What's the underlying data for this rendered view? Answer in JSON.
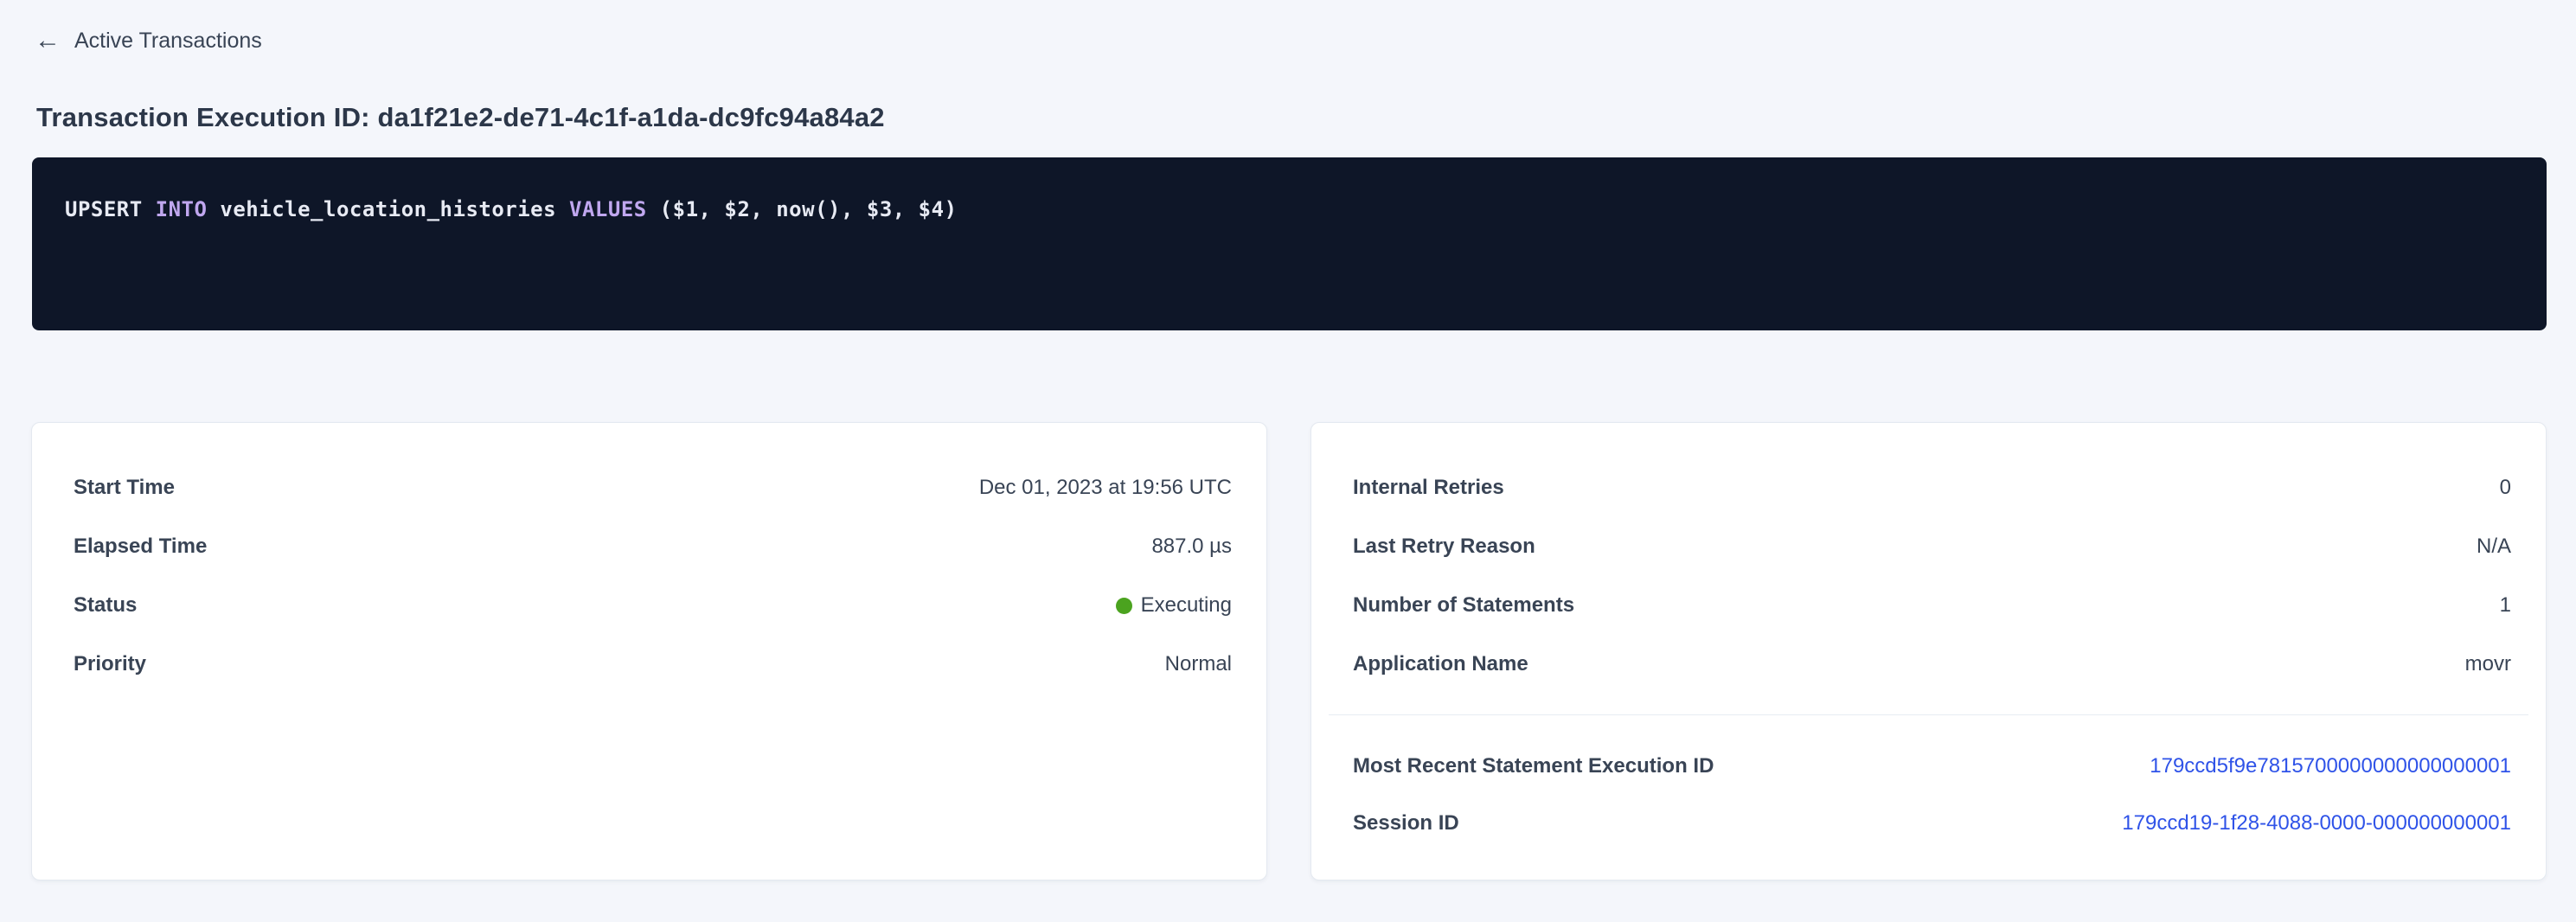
{
  "colors": {
    "link": "#2F53E8",
    "status_executing": "#4BA31F",
    "sql_keyword": "#C0A7EF",
    "sql_plain": "#E7EAF3",
    "sql_background": "#0E1628"
  },
  "header": {
    "back_link": "Active Transactions",
    "title": "Transaction Execution ID: da1f21e2-de71-4c1f-a1da-dc9fc94a84a2"
  },
  "sql": {
    "statement": "UPSERT INTO vehicle_location_histories VALUES ($1, $2, now(), $3, $4)",
    "tokens": [
      {
        "text": "UPSERT ",
        "type": "plain"
      },
      {
        "text": "INTO",
        "type": "keyword"
      },
      {
        "text": " vehicle_location_histories ",
        "type": "plain"
      },
      {
        "text": "VALUES",
        "type": "keyword"
      },
      {
        "text": " ($1, $2, now(), $3, $4)",
        "type": "plain"
      }
    ]
  },
  "summary_card": {
    "rows": [
      {
        "label": "Start Time",
        "value": "Dec 01, 2023 at 19:56 UTC"
      },
      {
        "label": "Elapsed Time",
        "value": "887.0 µs"
      },
      {
        "label": "Status",
        "value": "Executing"
      },
      {
        "label": "Priority",
        "value": "Normal"
      }
    ]
  },
  "metadata_card": {
    "rows": [
      {
        "label": "Internal Retries",
        "value": "0"
      },
      {
        "label": "Last Retry Reason",
        "value": "N/A"
      },
      {
        "label": "Number of Statements",
        "value": "1"
      },
      {
        "label": "Application Name",
        "value": "movr"
      }
    ],
    "links": [
      {
        "label": "Most Recent Statement Execution ID",
        "value": "179ccd5f9e7815700000000000000001"
      },
      {
        "label": "Session ID",
        "value": "179ccd19-1f28-4088-0000-000000000001"
      }
    ]
  }
}
